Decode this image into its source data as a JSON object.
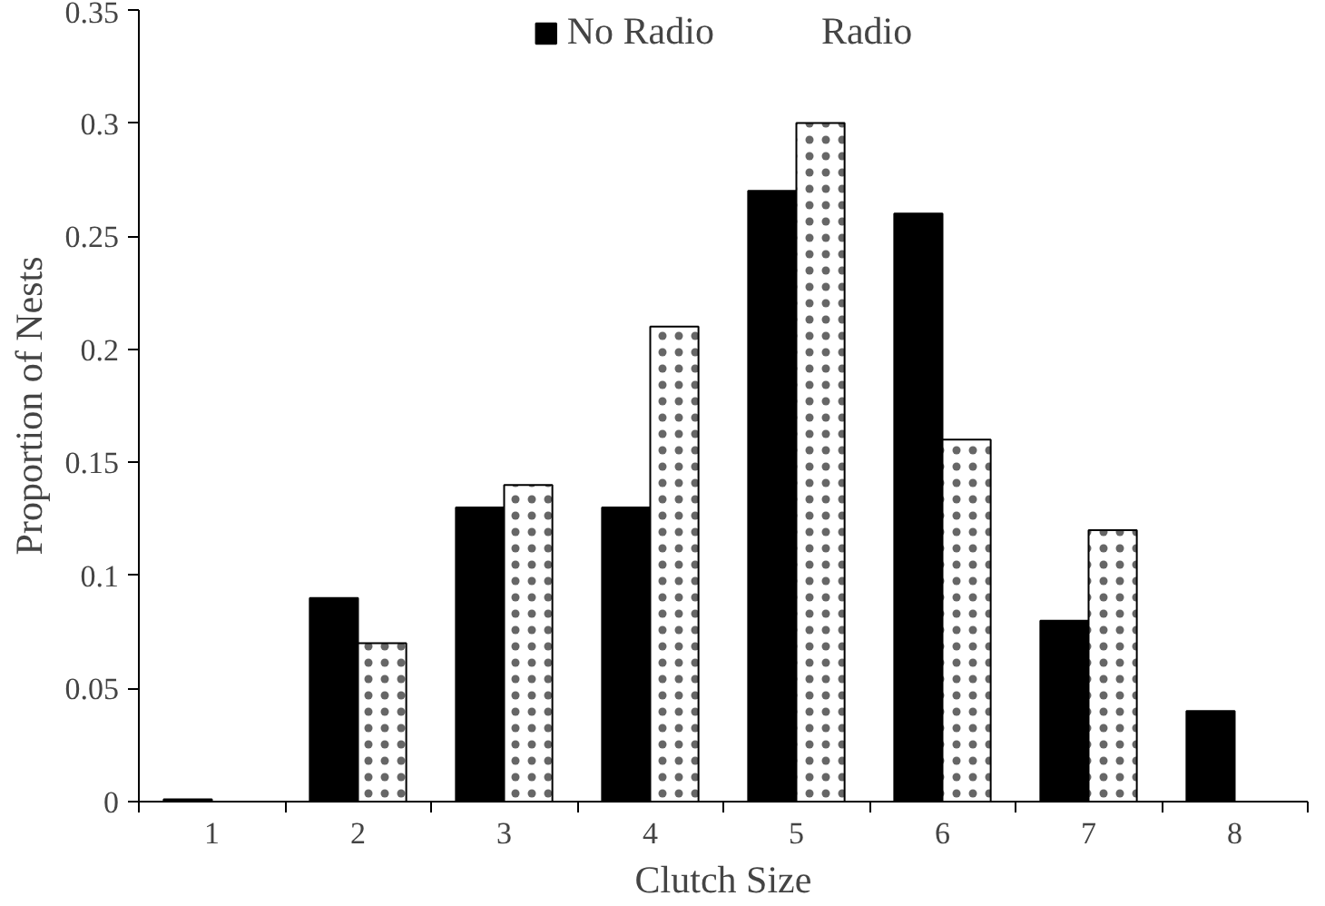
{
  "chart_data": {
    "type": "bar",
    "xlabel": "Clutch Size",
    "ylabel": "Proportion of Nests",
    "categories": [
      "1",
      "2",
      "3",
      "4",
      "5",
      "6",
      "7",
      "8"
    ],
    "series": [
      {
        "name": "No Radio",
        "color": "#000000",
        "values": [
          0.001,
          0.09,
          0.13,
          0.13,
          0.27,
          0.26,
          0.08,
          0.04
        ]
      },
      {
        "name": "Radio",
        "color": "#ffffff",
        "values": [
          null,
          0.07,
          0.14,
          0.21,
          0.3,
          0.16,
          0.12,
          null
        ]
      }
    ],
    "ylim": [
      0,
      0.35
    ],
    "yticks": [
      0,
      0.05,
      0.1,
      0.15,
      0.2,
      0.25,
      0.3,
      0.35
    ],
    "grid": false,
    "legend": "top"
  }
}
